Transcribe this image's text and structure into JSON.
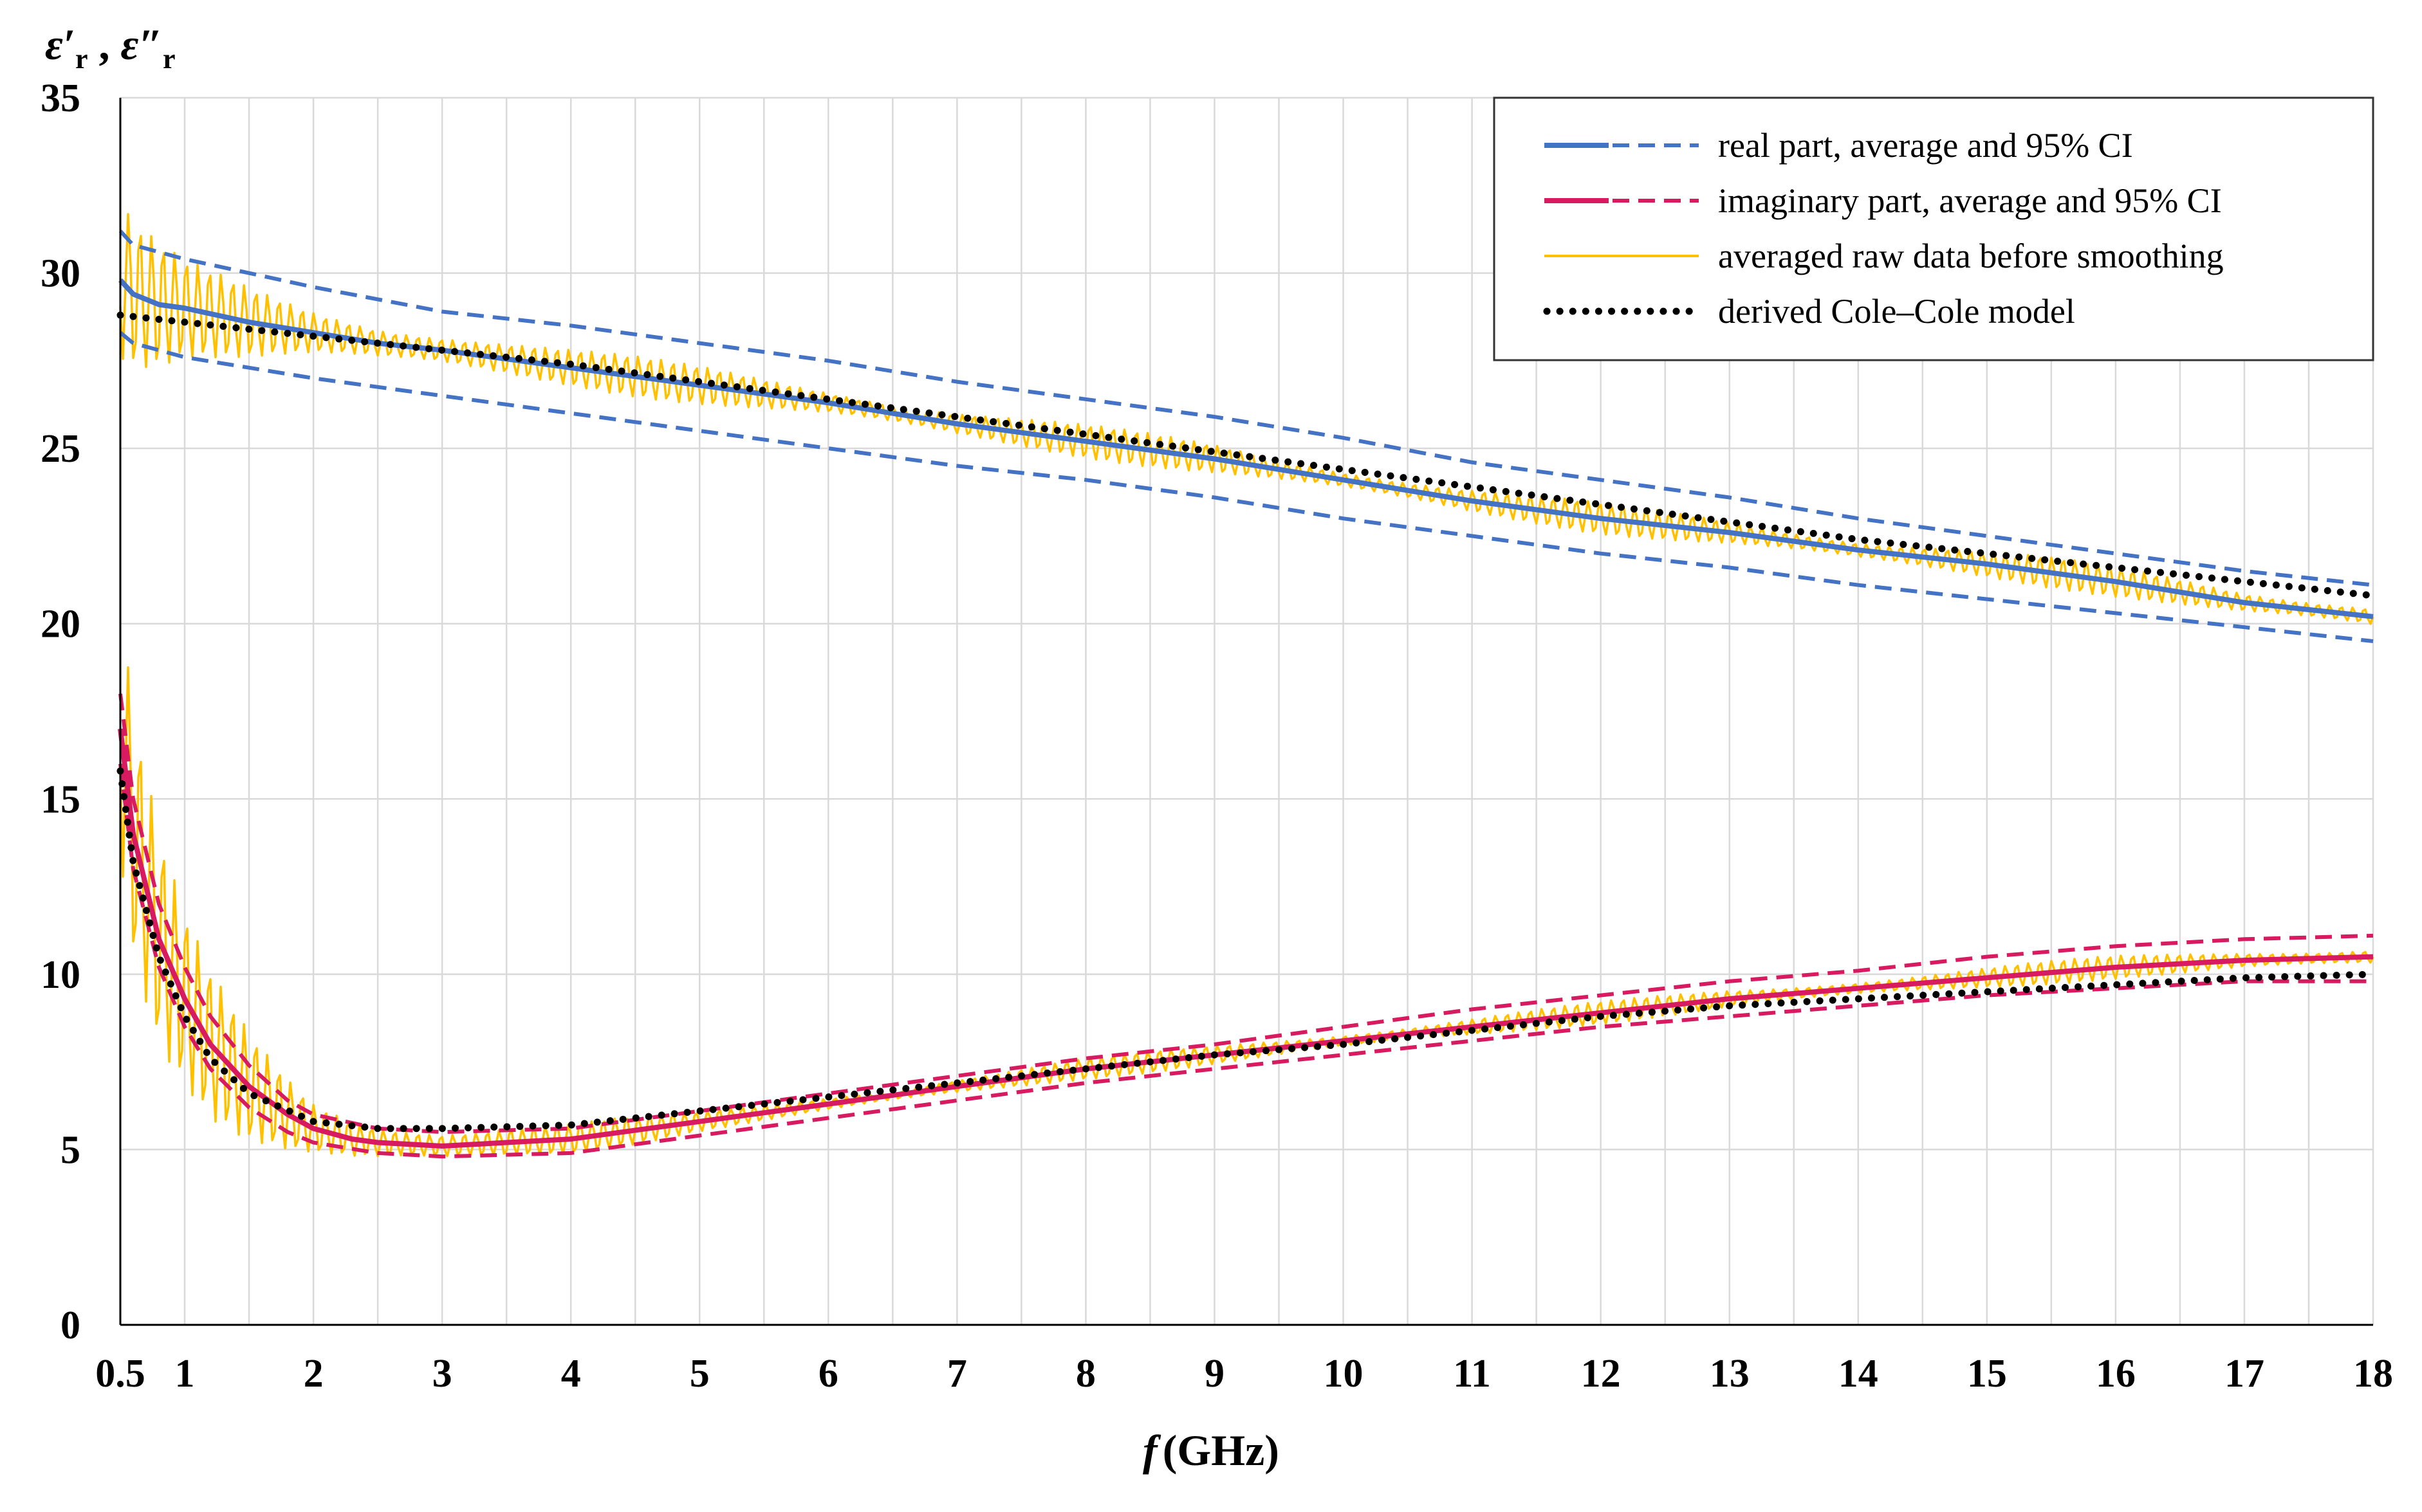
{
  "chart_data": {
    "type": "line",
    "title": "",
    "xlabel": "f (GHz)",
    "xlabel_var": "f",
    "xlabel_unit": "(GHz)",
    "ylabel": "ε′r , ε″r",
    "ylabel_sym1": "ε′",
    "ylabel_sym2": "ε″",
    "ylabel_sub": "r",
    "ylabel_sep": " , ",
    "xlim": [
      0.5,
      18
    ],
    "ylim": [
      0,
      35
    ],
    "x_ticks": [
      0.5,
      1,
      2,
      3,
      4,
      5,
      6,
      7,
      8,
      9,
      10,
      11,
      12,
      13,
      14,
      15,
      16,
      17,
      18
    ],
    "x_tick_labels": [
      "0.5",
      "1",
      "2",
      "3",
      "4",
      "5",
      "6",
      "7",
      "8",
      "9",
      "10",
      "11",
      "12",
      "13",
      "14",
      "15",
      "16",
      "17",
      "18"
    ],
    "x_minor_step": 0.5,
    "y_ticks": [
      0,
      5,
      10,
      15,
      20,
      25,
      30,
      35
    ],
    "y_tick_labels": [
      "0",
      "5",
      "10",
      "15",
      "20",
      "25",
      "30",
      "35"
    ],
    "grid": true,
    "legend_position": "top-right",
    "legend": [
      {
        "label": "real part, average and 95% CI",
        "color": "#4472C4",
        "style": "solid+dashed"
      },
      {
        "label": "imaginary part, average and 95% CI",
        "color": "#D81B60",
        "style": "solid+dashed"
      },
      {
        "label": "averaged raw data before smoothing",
        "color": "#FFC000",
        "style": "thin"
      },
      {
        "label": "derived Cole–Cole model",
        "color": "#000000",
        "style": "dotted"
      }
    ],
    "series": [
      {
        "name": "real part average",
        "color": "#4472C4",
        "style": "solid",
        "x": [
          0.5,
          0.6,
          0.8,
          1,
          1.5,
          2,
          2.5,
          3,
          4,
          5,
          6,
          7,
          8,
          9,
          10,
          11,
          12,
          13,
          14,
          15,
          16,
          17,
          18
        ],
        "y": [
          29.8,
          29.4,
          29.1,
          29.0,
          28.6,
          28.3,
          28.0,
          27.8,
          27.3,
          26.8,
          26.3,
          25.7,
          25.2,
          24.7,
          24.1,
          23.5,
          23.0,
          22.6,
          22.1,
          21.7,
          21.2,
          20.6,
          20.2
        ]
      },
      {
        "name": "real part 95% CI upper",
        "color": "#4472C4",
        "style": "dashed",
        "x": [
          0.5,
          0.6,
          1,
          2,
          3,
          4,
          5,
          6,
          7,
          8,
          9,
          10,
          11,
          12,
          13,
          14,
          15,
          16,
          17,
          18
        ],
        "y": [
          31.2,
          30.8,
          30.4,
          29.6,
          28.9,
          28.5,
          28.0,
          27.5,
          26.9,
          26.4,
          25.9,
          25.3,
          24.6,
          24.1,
          23.6,
          23.0,
          22.5,
          22.0,
          21.5,
          21.1
        ]
      },
      {
        "name": "real part 95% CI lower",
        "color": "#4472C4",
        "style": "dashed",
        "x": [
          0.5,
          0.6,
          1,
          2,
          3,
          4,
          5,
          6,
          7,
          8,
          9,
          10,
          11,
          12,
          13,
          14,
          15,
          16,
          17,
          18
        ],
        "y": [
          28.3,
          28.0,
          27.6,
          27.0,
          26.5,
          26.0,
          25.5,
          25.0,
          24.5,
          24.1,
          23.6,
          23.0,
          22.5,
          22.0,
          21.6,
          21.1,
          20.7,
          20.3,
          19.9,
          19.5
        ]
      },
      {
        "name": "imaginary part average",
        "color": "#D81B60",
        "style": "solid",
        "x": [
          0.5,
          0.6,
          0.8,
          1.0,
          1.2,
          1.5,
          1.8,
          2.0,
          2.3,
          2.5,
          3,
          3.5,
          4,
          5,
          6,
          7,
          8,
          9,
          10,
          11,
          12,
          13,
          14,
          15,
          16,
          17,
          18
        ],
        "y": [
          17.0,
          14.0,
          11.0,
          9.3,
          8.0,
          6.8,
          6.0,
          5.6,
          5.3,
          5.2,
          5.1,
          5.2,
          5.3,
          5.8,
          6.3,
          6.8,
          7.3,
          7.7,
          8.1,
          8.5,
          8.9,
          9.3,
          9.6,
          9.9,
          10.2,
          10.4,
          10.5
        ]
      },
      {
        "name": "imaginary part 95% CI upper",
        "color": "#D81B60",
        "style": "dashed",
        "x": [
          0.5,
          0.6,
          0.8,
          1.0,
          1.2,
          1.5,
          1.8,
          2.0,
          2.5,
          3,
          4,
          5,
          6,
          7,
          8,
          9,
          10,
          11,
          12,
          13,
          14,
          15,
          16,
          17,
          18
        ],
        "y": [
          18.0,
          15.0,
          12.0,
          10.2,
          8.8,
          7.4,
          6.4,
          6.0,
          5.6,
          5.5,
          5.6,
          6.1,
          6.6,
          7.1,
          7.6,
          8.0,
          8.5,
          9.0,
          9.4,
          9.8,
          10.1,
          10.5,
          10.8,
          11.0,
          11.1
        ]
      },
      {
        "name": "imaginary part 95% CI lower",
        "color": "#D81B60",
        "style": "dashed",
        "x": [
          0.5,
          0.6,
          0.8,
          1.0,
          1.2,
          1.5,
          1.8,
          2.0,
          2.5,
          3,
          4,
          5,
          6,
          7,
          8,
          9,
          10,
          11,
          12,
          13,
          14,
          15,
          16,
          17,
          18
        ],
        "y": [
          16.0,
          13.0,
          10.2,
          8.5,
          7.3,
          6.2,
          5.5,
          5.2,
          4.9,
          4.8,
          4.9,
          5.4,
          5.9,
          6.4,
          6.9,
          7.3,
          7.7,
          8.1,
          8.5,
          8.8,
          9.1,
          9.4,
          9.6,
          9.8,
          9.8
        ]
      },
      {
        "name": "averaged raw data (real) before smoothing",
        "color": "#FFC000",
        "style": "thin",
        "noise_amplitude": [
          [
            0.5,
            2.4
          ],
          [
            1,
            1.4
          ],
          [
            2,
            0.9
          ],
          [
            4,
            0.6
          ],
          [
            10,
            0.45
          ],
          [
            18,
            0.45
          ]
        ],
        "x": [
          0.5,
          0.6,
          0.8,
          1,
          1.5,
          2,
          2.5,
          3,
          4,
          5,
          6,
          7,
          8,
          9,
          10,
          11,
          12,
          13,
          14,
          15,
          16,
          17,
          18
        ],
        "y": [
          29.8,
          29.4,
          29.1,
          29.0,
          28.6,
          28.3,
          28.0,
          27.8,
          27.3,
          26.8,
          26.3,
          25.7,
          25.2,
          24.7,
          24.1,
          23.5,
          23.0,
          22.6,
          22.1,
          21.7,
          21.2,
          20.6,
          20.2
        ]
      },
      {
        "name": "averaged raw data (imaginary) before smoothing",
        "color": "#FFC000",
        "style": "thin",
        "noise_amplitude": [
          [
            0.5,
            4.0
          ],
          [
            1,
            2.5
          ],
          [
            2,
            1.1
          ],
          [
            3,
            0.7
          ],
          [
            5,
            0.3
          ],
          [
            18,
            0.35
          ]
        ],
        "x": [
          0.5,
          0.6,
          0.8,
          1.0,
          1.2,
          1.5,
          1.8,
          2.0,
          2.3,
          2.5,
          3,
          3.5,
          4,
          5,
          6,
          7,
          8,
          9,
          10,
          11,
          12,
          13,
          14,
          15,
          16,
          17,
          18
        ],
        "y": [
          17.0,
          14.0,
          11.0,
          9.3,
          8.0,
          6.8,
          6.0,
          5.6,
          5.3,
          5.2,
          5.1,
          5.2,
          5.3,
          5.8,
          6.3,
          6.8,
          7.3,
          7.7,
          8.1,
          8.5,
          8.9,
          9.3,
          9.6,
          9.9,
          10.2,
          10.4,
          10.5
        ]
      },
      {
        "name": "derived Cole–Cole model (real)",
        "color": "#000000",
        "style": "dotted",
        "x": [
          0.5,
          1,
          2,
          3,
          4,
          5,
          6,
          7,
          8,
          9,
          10,
          11,
          12,
          13,
          14,
          15,
          16,
          17,
          18
        ],
        "y": [
          28.8,
          28.6,
          28.2,
          27.8,
          27.4,
          26.9,
          26.4,
          25.9,
          25.4,
          24.9,
          24.4,
          23.9,
          23.4,
          22.9,
          22.4,
          22.0,
          21.6,
          21.2,
          20.8
        ]
      },
      {
        "name": "derived Cole–Cole model (imaginary)",
        "color": "#000000",
        "style": "dotted",
        "x": [
          0.5,
          0.6,
          0.8,
          1.0,
          1.2,
          1.5,
          2.0,
          2.5,
          3,
          4,
          5,
          6,
          7,
          8,
          9,
          10,
          11,
          12,
          13,
          14,
          15,
          16,
          17,
          18
        ],
        "y": [
          15.8,
          13.2,
          10.5,
          8.8,
          7.6,
          6.6,
          5.8,
          5.6,
          5.6,
          5.7,
          6.1,
          6.5,
          6.9,
          7.3,
          7.7,
          8.0,
          8.4,
          8.8,
          9.1,
          9.3,
          9.5,
          9.7,
          9.9,
          10.0
        ]
      }
    ]
  }
}
